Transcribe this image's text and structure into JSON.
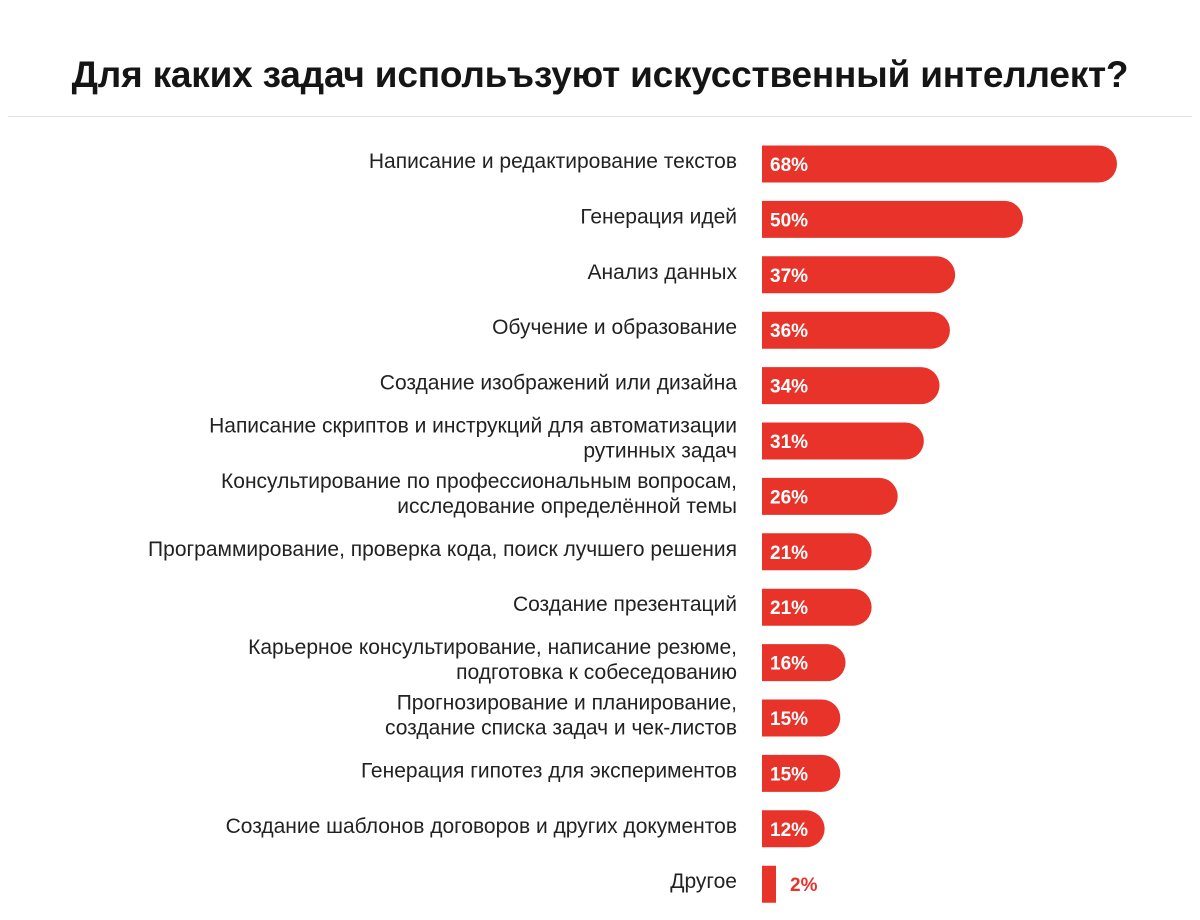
{
  "header": {
    "title": "Для каких задач испольъзуют искусственный интеллект?"
  },
  "colors": {
    "bar": "#e8332a",
    "value_inside": "#ffffff",
    "value_outside": "#e8332a",
    "label": "#222222"
  },
  "chart_data": {
    "type": "bar",
    "orientation": "horizontal",
    "title": "Для каких задач испольъзуют искусственный интеллект?",
    "categories": [
      [
        "Написание и редактирование текстов"
      ],
      [
        "Генерация идей"
      ],
      [
        "Анализ данных"
      ],
      [
        "Обучение и образование"
      ],
      [
        "Создание изображений или дизайна"
      ],
      [
        "Написание скриптов и инструкций для автоматизации",
        "рутинных задач"
      ],
      [
        "Консультирование по профессиональным вопросам,",
        "исследование определённой темы"
      ],
      [
        "Программирование, проверка кода, поиск лучшего решения"
      ],
      [
        "Создание презентаций"
      ],
      [
        "Карьерное консультирование, написание резюме,",
        "подготовка к собеседованию"
      ],
      [
        "Прогнозирование и планирование,",
        "создание списка задач и чек-листов"
      ],
      [
        "Генерация гипотез для экспериментов"
      ],
      [
        "Создание шаблонов договоров и других документов"
      ],
      [
        "Другое"
      ]
    ],
    "values": [
      68,
      50,
      37,
      36,
      34,
      31,
      26,
      21,
      21,
      16,
      15,
      15,
      12,
      2
    ],
    "value_labels": [
      "68%",
      "50%",
      "37%",
      "36%",
      "34%",
      "31%",
      "26%",
      "21%",
      "21%",
      "16%",
      "15%",
      "15%",
      "12%",
      "2%"
    ],
    "unit": "%",
    "xlim": [
      0,
      68
    ],
    "grid": false,
    "legend": "none"
  }
}
